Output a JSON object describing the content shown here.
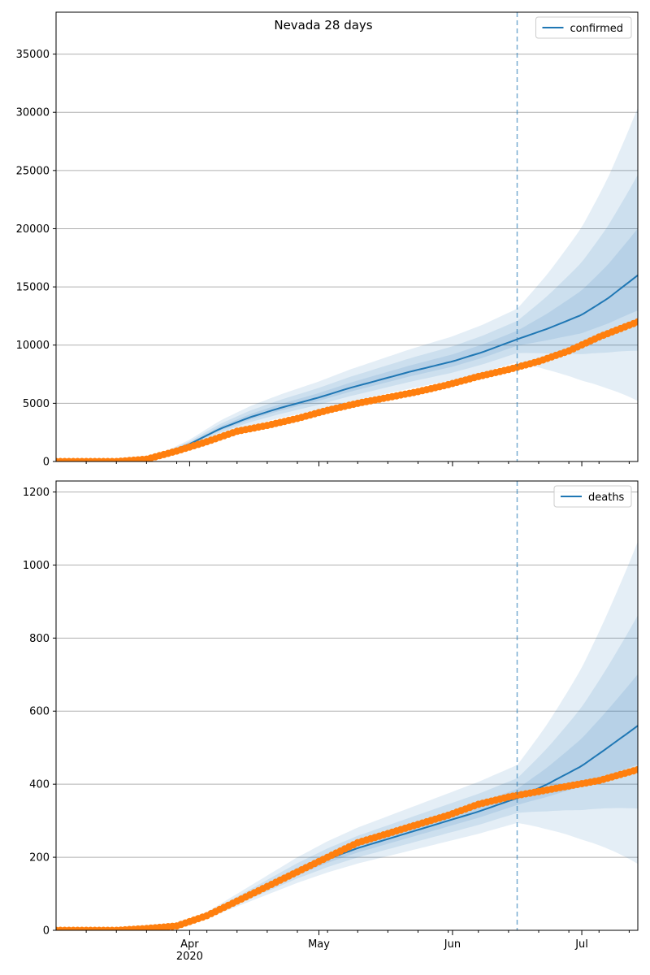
{
  "figure_title": "Nevada 28 days",
  "colors": {
    "model": "#1f77b4",
    "observed": "#ff7f0e",
    "band": "#1f77b4",
    "grid": "#b0b0b0",
    "forecast_line": "#1f77b4"
  },
  "chart_data": [
    {
      "type": "line",
      "series_name": "confirmed",
      "x_range": [
        "2020-03-01",
        "2020-07-14"
      ],
      "ylim": [
        0,
        38600
      ],
      "yticks": [
        0,
        5000,
        10000,
        15000,
        20000,
        25000,
        30000,
        35000
      ],
      "ytick_labels": [
        "0",
        "5000",
        "10000",
        "15000",
        "20000",
        "25000",
        "30000",
        "35000"
      ],
      "grid": "y",
      "legend": "top-right",
      "forecast_start": "2020-06-16",
      "model_median": [
        [
          "2020-03-01",
          0
        ],
        [
          "2020-03-15",
          0
        ],
        [
          "2020-03-20",
          80
        ],
        [
          "2020-03-25",
          500
        ],
        [
          "2020-04-01",
          1500
        ],
        [
          "2020-04-08",
          2800
        ],
        [
          "2020-04-15",
          3800
        ],
        [
          "2020-04-22",
          4600
        ],
        [
          "2020-05-01",
          5500
        ],
        [
          "2020-05-08",
          6300
        ],
        [
          "2020-05-15",
          7000
        ],
        [
          "2020-05-22",
          7700
        ],
        [
          "2020-06-01",
          8600
        ],
        [
          "2020-06-08",
          9400
        ],
        [
          "2020-06-16",
          10500
        ],
        [
          "2020-06-23",
          11400
        ],
        [
          "2020-07-01",
          12600
        ],
        [
          "2020-07-07",
          14000
        ],
        [
          "2020-07-14",
          16000
        ]
      ],
      "observed": [
        [
          "2020-03-01",
          0
        ],
        [
          "2020-03-15",
          0
        ],
        [
          "2020-03-22",
          200
        ],
        [
          "2020-03-29",
          900
        ],
        [
          "2020-04-05",
          1700
        ],
        [
          "2020-04-12",
          2600
        ],
        [
          "2020-04-19",
          3100
        ],
        [
          "2020-04-26",
          3700
        ],
        [
          "2020-05-03",
          4400
        ],
        [
          "2020-05-10",
          5000
        ],
        [
          "2020-05-17",
          5500
        ],
        [
          "2020-05-24",
          6000
        ],
        [
          "2020-05-31",
          6600
        ],
        [
          "2020-06-07",
          7300
        ],
        [
          "2020-06-14",
          7900
        ],
        [
          "2020-06-21",
          8600
        ],
        [
          "2020-06-28",
          9500
        ],
        [
          "2020-07-05",
          10700
        ],
        [
          "2020-07-14",
          12000
        ]
      ]
    },
    {
      "type": "line",
      "series_name": "deaths",
      "x_range": [
        "2020-03-01",
        "2020-07-14"
      ],
      "ylim": [
        0,
        1230
      ],
      "yticks": [
        0,
        200,
        400,
        600,
        800,
        1000,
        1200
      ],
      "ytick_labels": [
        "0",
        "200",
        "400",
        "600",
        "800",
        "1000",
        "1200"
      ],
      "xtick_labels": [
        "Apr\n2020",
        "May",
        "Jun",
        "Jul"
      ],
      "xtick_dates": [
        "2020-04-01",
        "2020-05-01",
        "2020-06-01",
        "2020-07-01"
      ],
      "grid": "y",
      "legend": "top-right",
      "forecast_start": "2020-06-16",
      "model_median": [
        [
          "2020-03-01",
          0
        ],
        [
          "2020-03-15",
          0
        ],
        [
          "2020-03-22",
          3
        ],
        [
          "2020-03-29",
          10
        ],
        [
          "2020-04-05",
          40
        ],
        [
          "2020-04-12",
          80
        ],
        [
          "2020-04-19",
          120
        ],
        [
          "2020-04-26",
          160
        ],
        [
          "2020-05-03",
          195
        ],
        [
          "2020-05-10",
          225
        ],
        [
          "2020-05-17",
          250
        ],
        [
          "2020-05-24",
          275
        ],
        [
          "2020-05-31",
          300
        ],
        [
          "2020-06-07",
          325
        ],
        [
          "2020-06-16",
          362
        ],
        [
          "2020-06-23",
          400
        ],
        [
          "2020-07-01",
          450
        ],
        [
          "2020-07-07",
          500
        ],
        [
          "2020-07-14",
          560
        ]
      ],
      "observed": [
        [
          "2020-03-01",
          0
        ],
        [
          "2020-03-15",
          0
        ],
        [
          "2020-03-22",
          5
        ],
        [
          "2020-03-29",
          12
        ],
        [
          "2020-04-05",
          40
        ],
        [
          "2020-04-12",
          80
        ],
        [
          "2020-04-19",
          120
        ],
        [
          "2020-04-26",
          160
        ],
        [
          "2020-05-03",
          200
        ],
        [
          "2020-05-10",
          240
        ],
        [
          "2020-05-17",
          265
        ],
        [
          "2020-05-24",
          290
        ],
        [
          "2020-05-31",
          315
        ],
        [
          "2020-06-07",
          345
        ],
        [
          "2020-06-14",
          365
        ],
        [
          "2020-06-21",
          380
        ],
        [
          "2020-06-28",
          395
        ],
        [
          "2020-07-05",
          410
        ],
        [
          "2020-07-14",
          440
        ]
      ]
    }
  ]
}
